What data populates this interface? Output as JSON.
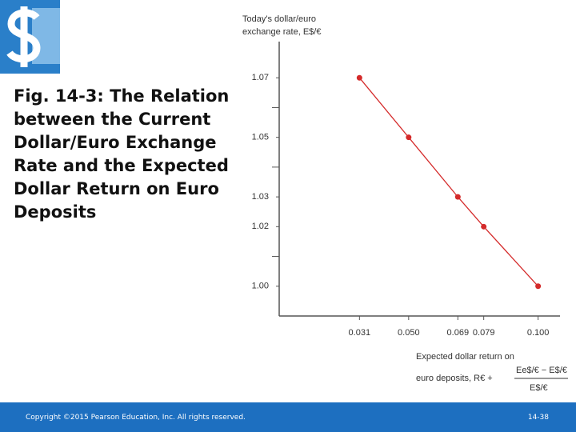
{
  "slide": {
    "title": "Fig. 14-3: The Relation between the Current Dollar/Euro Exchange Rate and the Expected Dollar Return on Euro Deposits",
    "footer": {
      "copyright": "Copyright ©2015 Pearson Education, Inc. All rights reserved.",
      "page": "14-38"
    }
  },
  "chart_data": {
    "type": "line",
    "ylabel": [
      "Today's dollar/euro",
      "exchange rate, E$/€"
    ],
    "xlabel": [
      "Expected dollar return on",
      "euro deposits, R€ +"
    ],
    "xlabel_fraction": {
      "numerator": "Ee$/€ − E$/€",
      "denominator": "E$/€"
    },
    "x": [
      0.031,
      0.05,
      0.069,
      0.079,
      0.1
    ],
    "values": [
      1.07,
      1.05,
      1.03,
      1.02,
      1.0
    ],
    "color": "#d42a2a",
    "xlim": [
      0,
      0.11
    ],
    "ylim": [
      0.99,
      1.08
    ],
    "xticks": [
      0.031,
      {
        "value": 0.05,
        "label": "0.050"
      },
      0.069,
      0.079,
      {
        "value": 0.1,
        "label": "0.100"
      }
    ],
    "yticks": [
      {
        "value": 1.0,
        "label": "1.00"
      },
      1.02,
      1.03,
      1.05,
      1.07
    ],
    "yminorticks": [
      1.01,
      1.04,
      1.06
    ]
  }
}
